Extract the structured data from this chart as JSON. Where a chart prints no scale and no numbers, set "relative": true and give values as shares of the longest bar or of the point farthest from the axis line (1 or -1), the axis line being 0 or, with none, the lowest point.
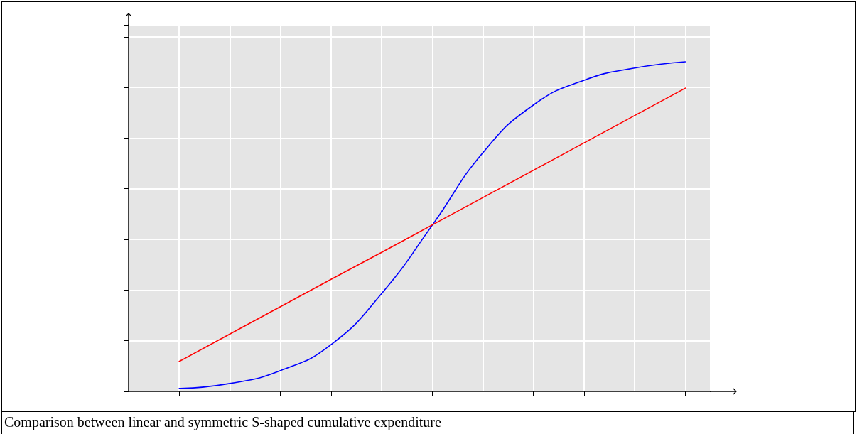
{
  "chart_data": {
    "type": "line",
    "relative": true,
    "categories": [
      null,
      null,
      null,
      null,
      null,
      null,
      null,
      null,
      null,
      null,
      null
    ],
    "series": [
      {
        "color": "#0000ff",
        "values": [
          0.009,
          0.024,
          0.063,
          0.142,
          0.297,
          0.504,
          0.724,
          0.869,
          0.944,
          0.981,
          1
        ]
      },
      {
        "color": "#ff0000",
        "values": [
          0.091,
          0.174,
          0.257,
          0.34,
          0.422,
          0.505,
          0.588,
          0.671,
          0.754,
          0.837,
          0.92
        ]
      }
    ],
    "grid": true,
    "marker": "none",
    "line_style": "solid",
    "annotations": [
      "Comparison between linear and symmetric S-shaped cumulative expenditure"
    ]
  }
}
